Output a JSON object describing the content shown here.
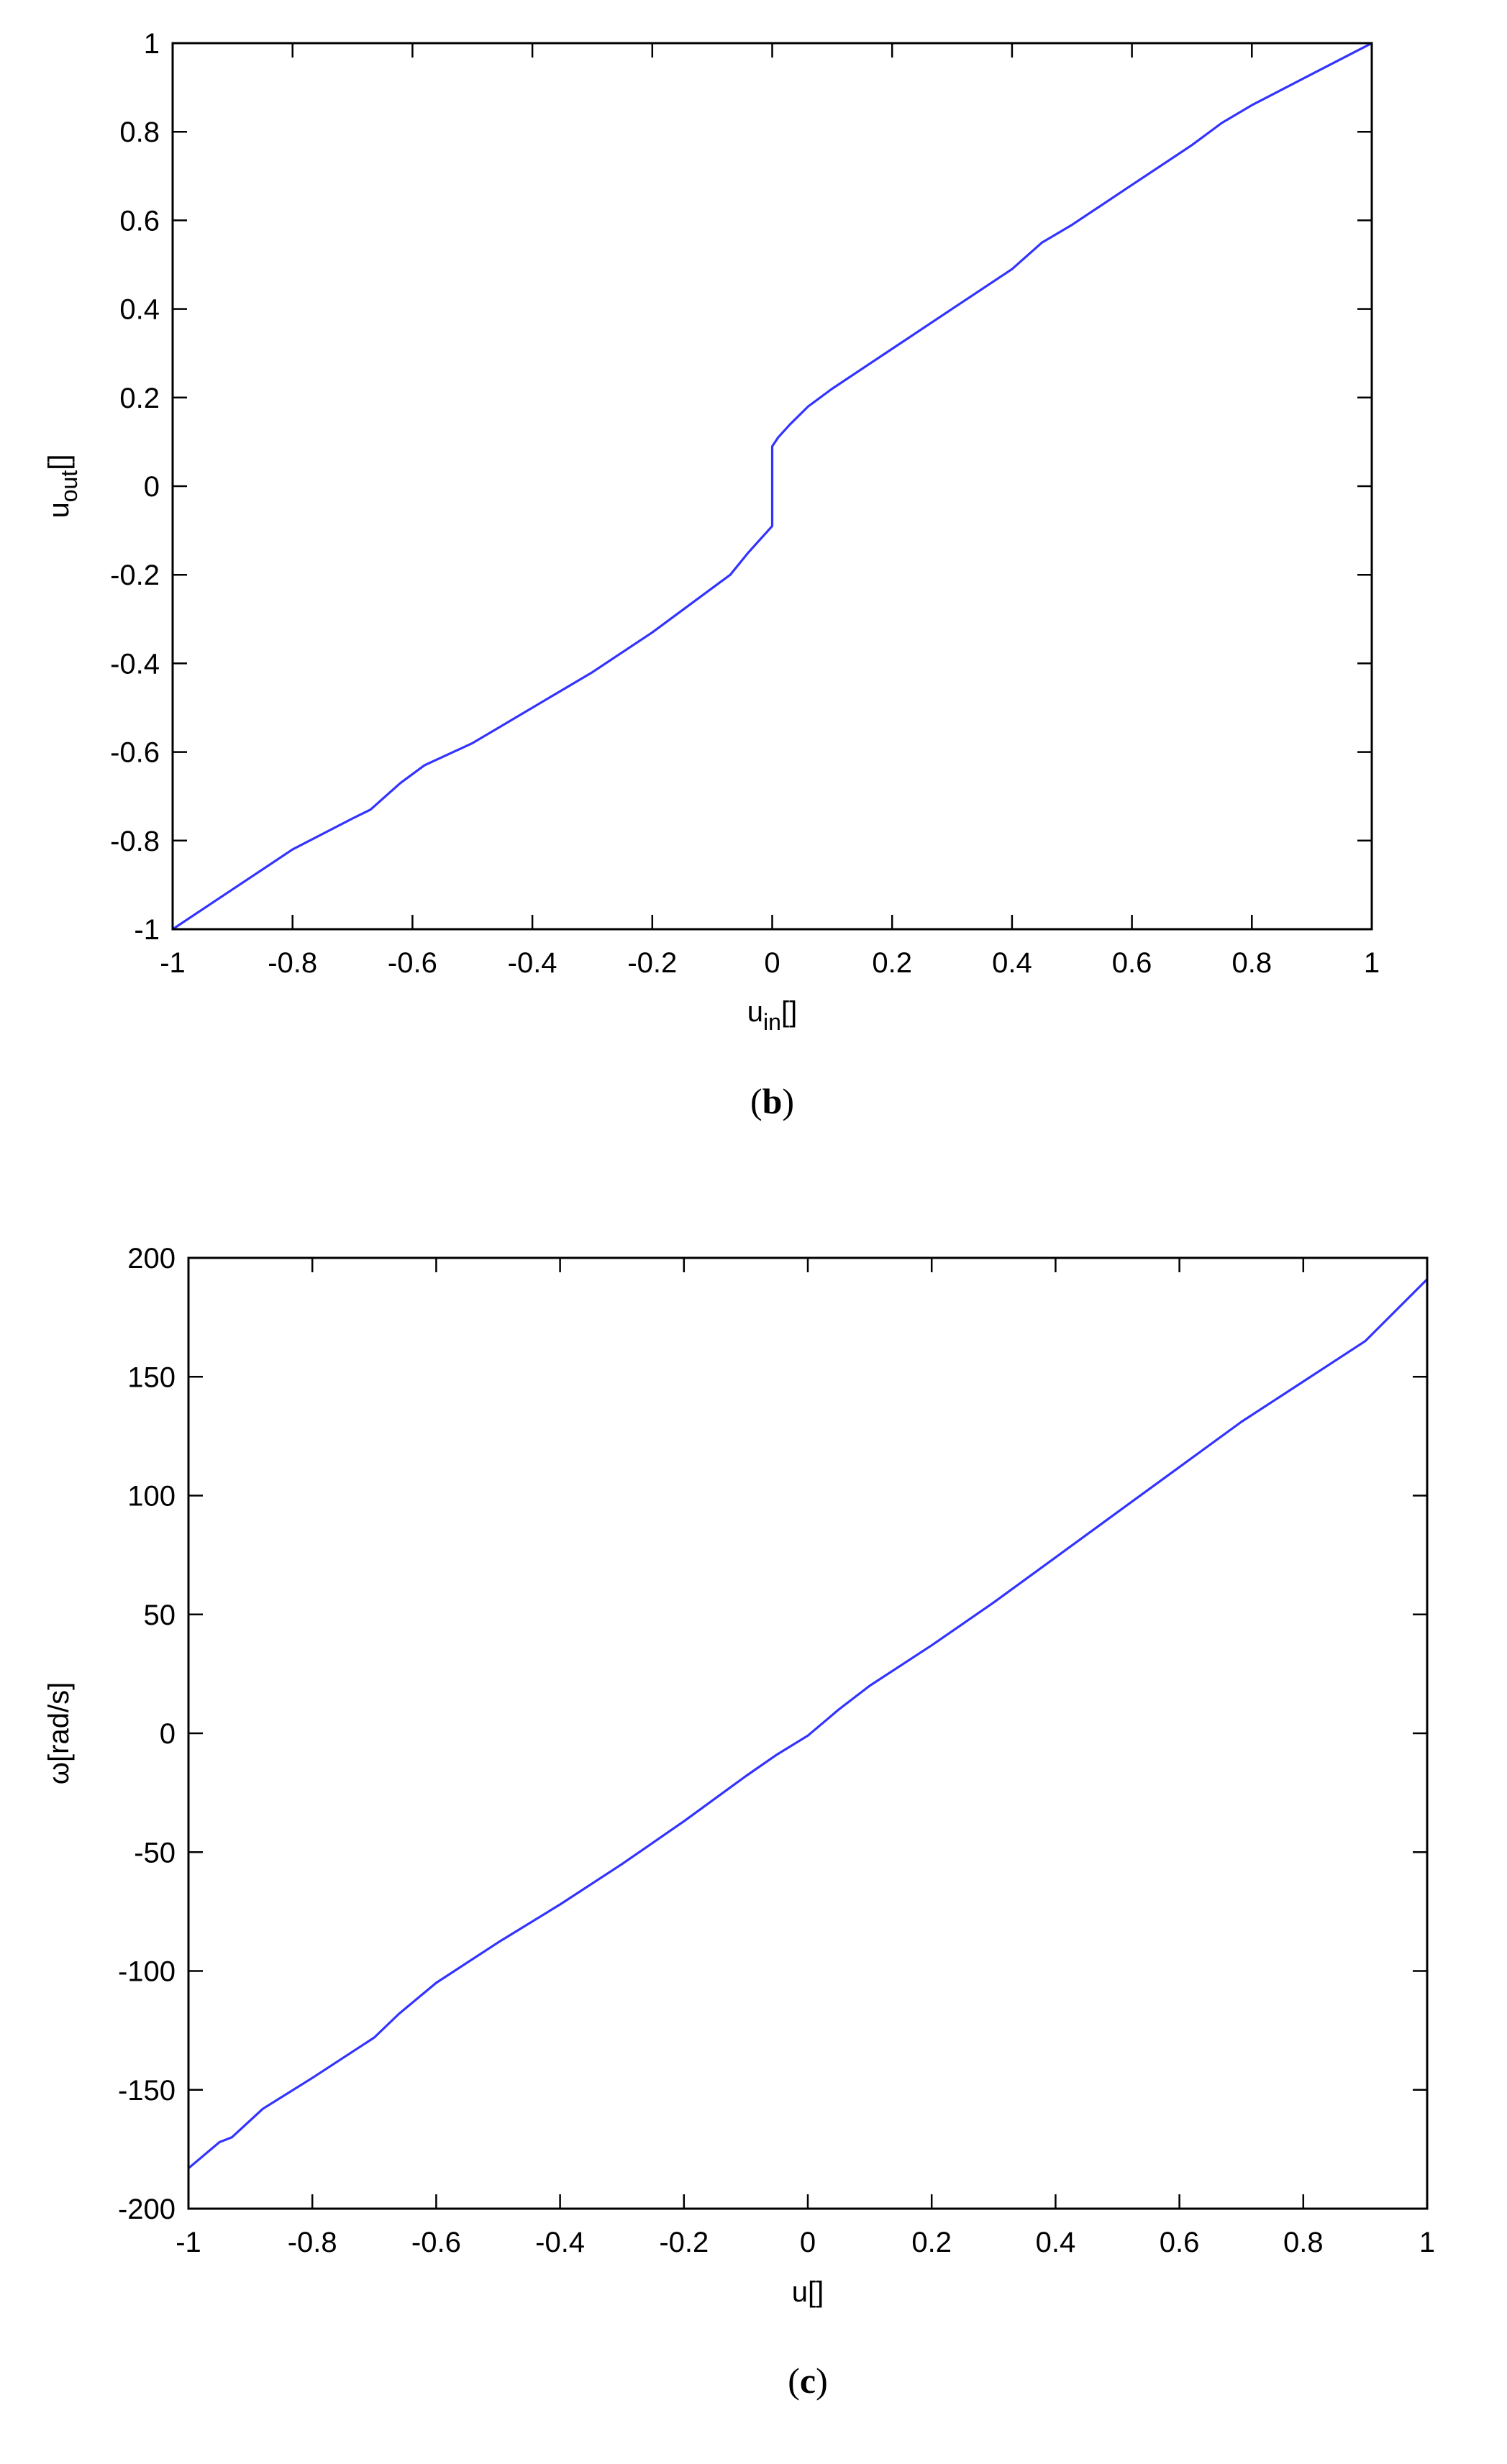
{
  "chart_data": [
    {
      "type": "line",
      "caption": {
        "open": "(",
        "letter": "b",
        "close": ")"
      },
      "xlabel": {
        "main": "u",
        "sub": "in",
        "suffix": "[]"
      },
      "ylabel": {
        "main": "u",
        "sub": "out",
        "suffix": "[]"
      },
      "xlim": [
        -1,
        1
      ],
      "ylim": [
        -1,
        1
      ],
      "xticks": [
        -1,
        -0.8,
        -0.6,
        -0.4,
        -0.2,
        0,
        0.2,
        0.4,
        0.6,
        0.8,
        1
      ],
      "xtick_labels": [
        "-1",
        "-0.8",
        "-0.6",
        "-0.4",
        "-0.2",
        "0",
        "0.2",
        "0.4",
        "0.6",
        "0.8",
        "1"
      ],
      "yticks": [
        -1,
        -0.8,
        -0.6,
        -0.4,
        -0.2,
        0,
        0.2,
        0.4,
        0.6,
        0.8,
        1
      ],
      "ytick_labels": [
        "-1",
        "-0.8",
        "-0.6",
        "-0.4",
        "-0.2",
        "0",
        "0.2",
        "0.4",
        "0.6",
        "0.8",
        "1"
      ],
      "grid": false,
      "series": [
        {
          "color": "#3333ff",
          "x": [
            -1,
            -0.9,
            -0.8,
            -0.7,
            -0.67,
            -0.62,
            -0.58,
            -0.5,
            -0.4,
            -0.3,
            -0.2,
            -0.1,
            -0.07,
            -0.04,
            0,
            0,
            0.01,
            0.03,
            0.06,
            0.1,
            0.2,
            0.3,
            0.4,
            0.45,
            0.5,
            0.6,
            0.7,
            0.75,
            0.8,
            0.9,
            1
          ],
          "y": [
            -1,
            -0.91,
            -0.82,
            -0.75,
            -0.73,
            -0.67,
            -0.63,
            -0.58,
            -0.5,
            -0.42,
            -0.33,
            -0.23,
            -0.2,
            -0.15,
            -0.09,
            0.09,
            0.11,
            0.14,
            0.18,
            0.22,
            0.31,
            0.4,
            0.49,
            0.55,
            0.59,
            0.68,
            0.77,
            0.82,
            0.86,
            0.93,
            1
          ]
        }
      ]
    },
    {
      "type": "line",
      "caption": {
        "open": "(",
        "letter": "c",
        "close": ")"
      },
      "xlabel": {
        "main": "u",
        "sub": "",
        "suffix": "[]"
      },
      "ylabel": {
        "main": "ω",
        "sub": "",
        "suffix": "[rad/s]"
      },
      "xlim": [
        -1,
        1
      ],
      "ylim": [
        -200,
        200
      ],
      "xticks": [
        -1,
        -0.8,
        -0.6,
        -0.4,
        -0.2,
        0,
        0.2,
        0.4,
        0.6,
        0.8,
        1
      ],
      "xtick_labels": [
        "-1",
        "-0.8",
        "-0.6",
        "-0.4",
        "-0.2",
        "0",
        "0.2",
        "0.4",
        "0.6",
        "0.8",
        "1"
      ],
      "yticks": [
        -200,
        -150,
        -100,
        -50,
        0,
        50,
        100,
        150,
        200
      ],
      "ytick_labels": [
        "-200",
        "-150",
        "-100",
        "-50",
        "0",
        "50",
        "100",
        "150",
        "200"
      ],
      "grid": false,
      "series": [
        {
          "color": "#3333ff",
          "x": [
            -1,
            -0.95,
            -0.93,
            -0.88,
            -0.8,
            -0.7,
            -0.66,
            -0.6,
            -0.5,
            -0.4,
            -0.3,
            -0.2,
            -0.1,
            -0.05,
            0,
            0.05,
            0.1,
            0.2,
            0.3,
            0.4,
            0.5,
            0.6,
            0.7,
            0.8,
            0.9,
            1
          ],
          "y": [
            -183,
            -172,
            -170,
            -158,
            -145,
            -128,
            -118,
            -105,
            -88,
            -72,
            -55,
            -37,
            -18,
            -9,
            -1,
            10,
            20,
            37,
            55,
            74,
            93,
            112,
            131,
            148,
            165,
            191
          ]
        }
      ]
    }
  ]
}
